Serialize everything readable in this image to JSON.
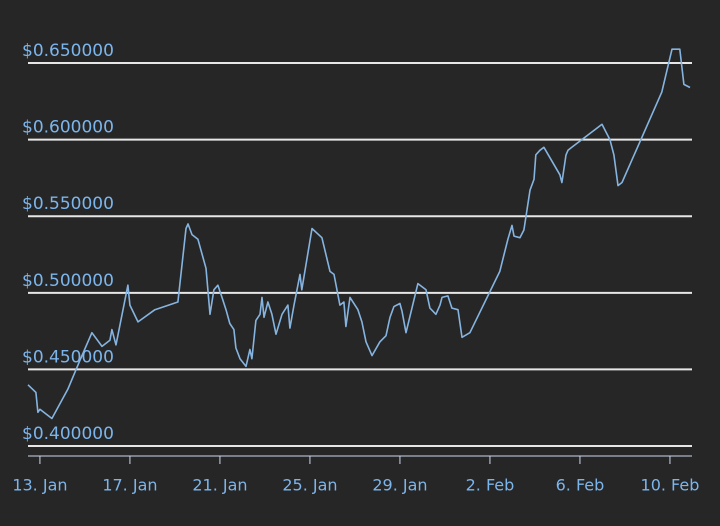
{
  "chart_data": {
    "type": "line",
    "color": "#86b4e0",
    "x": [
      -0.53,
      -0.18,
      -0.09,
      0,
      0.53,
      1.24,
      1.78,
      2.31,
      2.76,
      3.11,
      3.2,
      3.38,
      3.91,
      4.0,
      4.36,
      5.11,
      6.13,
      6.49,
      6.58,
      6.76,
      7.02,
      7.38,
      7.56,
      7.73,
      7.91,
      8.09,
      8.27,
      8.44,
      8.62,
      8.71,
      8.89,
      9.16,
      9.33,
      9.42,
      9.6,
      9.78,
      9.87,
      9.96,
      10.13,
      10.31,
      10.49,
      10.76,
      11.02,
      11.11,
      11.29,
      11.56,
      11.64,
      12.09,
      12.53,
      12.89,
      13.07,
      13.33,
      13.51,
      13.6,
      13.78,
      14.13,
      14.31,
      14.49,
      14.76,
      15.11,
      15.38,
      15.56,
      15.73,
      16.0,
      16.09,
      16.27,
      16.8,
      17.16,
      17.33,
      17.6,
      17.78,
      17.87,
      18.13,
      18.31,
      18.58,
      18.76,
      19.11,
      20.44,
      20.8,
      20.98,
      21.07,
      21.33,
      21.51,
      21.78,
      21.96,
      22.04,
      22.22,
      22.4,
      23.11,
      23.2,
      23.38,
      23.47,
      23.64,
      24.98,
      25.33,
      25.51,
      25.69,
      25.87,
      27.64,
      28.09,
      28.44,
      28.62,
      28.89
    ],
    "values": [
      0.44,
      0.435,
      0.422,
      0.424,
      0.418,
      0.437,
      0.456,
      0.474,
      0.465,
      0.469,
      0.476,
      0.466,
      0.505,
      0.492,
      0.481,
      0.489,
      0.494,
      0.542,
      0.545,
      0.538,
      0.535,
      0.516,
      0.486,
      0.502,
      0.505,
      0.497,
      0.489,
      0.48,
      0.476,
      0.464,
      0.457,
      0.452,
      0.463,
      0.457,
      0.482,
      0.486,
      0.497,
      0.484,
      0.494,
      0.486,
      0.473,
      0.486,
      0.492,
      0.477,
      0.492,
      0.512,
      0.502,
      0.542,
      0.536,
      0.514,
      0.512,
      0.492,
      0.494,
      0.478,
      0.497,
      0.489,
      0.481,
      0.468,
      0.459,
      0.468,
      0.472,
      0.484,
      0.491,
      0.493,
      0.488,
      0.474,
      0.506,
      0.502,
      0.49,
      0.486,
      0.492,
      0.497,
      0.498,
      0.49,
      0.489,
      0.471,
      0.474,
      0.514,
      0.535,
      0.544,
      0.537,
      0.536,
      0.541,
      0.567,
      0.574,
      0.59,
      0.593,
      0.595,
      0.577,
      0.572,
      0.59,
      0.593,
      0.595,
      0.61,
      0.6,
      0.59,
      0.57,
      0.572,
      0.631,
      0.659,
      0.659,
      0.636,
      0.634
    ],
    "xlim": [
      -0.53,
      28.98
    ],
    "xticks": [
      {
        "value": 0,
        "label": "13. Jan"
      },
      {
        "value": 4,
        "label": "17. Jan"
      },
      {
        "value": 8,
        "label": "21. Jan"
      },
      {
        "value": 12,
        "label": "25. Jan"
      },
      {
        "value": 16,
        "label": "29. Jan"
      },
      {
        "value": 20,
        "label": "2. Feb"
      },
      {
        "value": 24,
        "label": "6. Feb"
      },
      {
        "value": 28,
        "label": "10. Feb"
      }
    ],
    "ylim": [
      0.3935,
      0.665
    ],
    "yticks": [
      {
        "value": 0.4,
        "label": "$0.400000"
      },
      {
        "value": 0.45,
        "label": "$0.450000"
      },
      {
        "value": 0.5,
        "label": "$0.500000"
      },
      {
        "value": 0.55,
        "label": "$0.550000"
      },
      {
        "value": 0.6,
        "label": "$0.600000"
      },
      {
        "value": 0.65,
        "label": "$0.650000"
      }
    ],
    "grid": true
  }
}
